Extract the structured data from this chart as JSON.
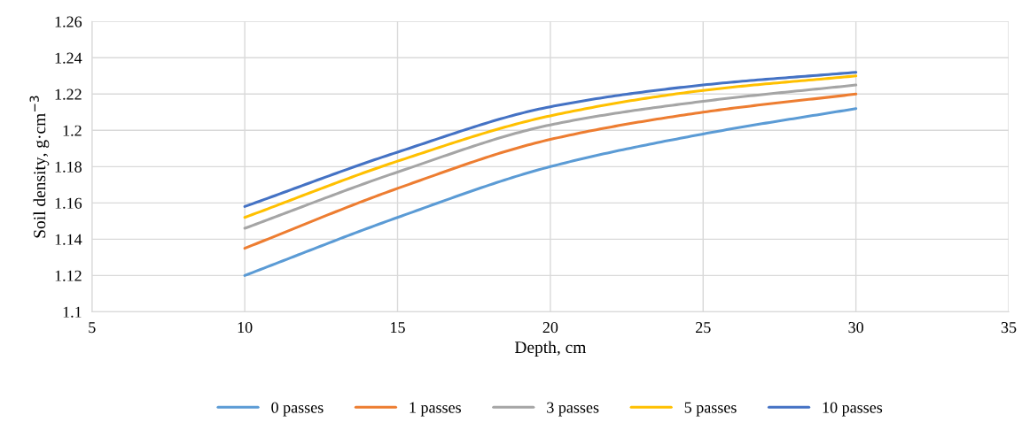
{
  "chart_data": {
    "type": "line",
    "xlabel": "Depth, cm",
    "ylabel": "Soil density, g·cm$^{−3}$",
    "x": [
      10,
      15,
      20,
      25,
      30
    ],
    "series": [
      {
        "name": "0 passes",
        "color": "#5b9bd5",
        "values": [
          1.12,
          1.152,
          1.18,
          1.198,
          1.212
        ]
      },
      {
        "name": "1 passes",
        "color": "#ed7d31",
        "values": [
          1.135,
          1.168,
          1.195,
          1.21,
          1.22
        ]
      },
      {
        "name": "3 passes",
        "color": "#a5a5a5",
        "values": [
          1.146,
          1.177,
          1.203,
          1.216,
          1.225
        ]
      },
      {
        "name": "5 passes",
        "color": "#ffc000",
        "values": [
          1.152,
          1.183,
          1.208,
          1.222,
          1.23
        ]
      },
      {
        "name": "10 passes",
        "color": "#4472c4",
        "values": [
          1.158,
          1.188,
          1.213,
          1.225,
          1.232
        ]
      }
    ],
    "xlim": [
      5,
      35
    ],
    "xticks": [
      5,
      10,
      15,
      20,
      25,
      30,
      35
    ],
    "ylim": [
      1.1,
      1.26
    ],
    "yticks": [
      {
        "value": 1.1,
        "label": "1.1"
      },
      {
        "value": 1.12,
        "label": "1.12"
      },
      {
        "value": 1.14,
        "label": "1.14"
      },
      {
        "value": 1.16,
        "label": "1.16"
      },
      {
        "value": 1.18,
        "label": "1.18"
      },
      {
        "value": 1.2,
        "label": "1.2"
      },
      {
        "value": 1.22,
        "label": "1.22"
      },
      {
        "value": 1.24,
        "label": "1.24"
      },
      {
        "value": 1.26,
        "label": "1.26"
      }
    ],
    "grid": true,
    "legend": "bottom",
    "marker": "none",
    "line_style": "solid"
  }
}
